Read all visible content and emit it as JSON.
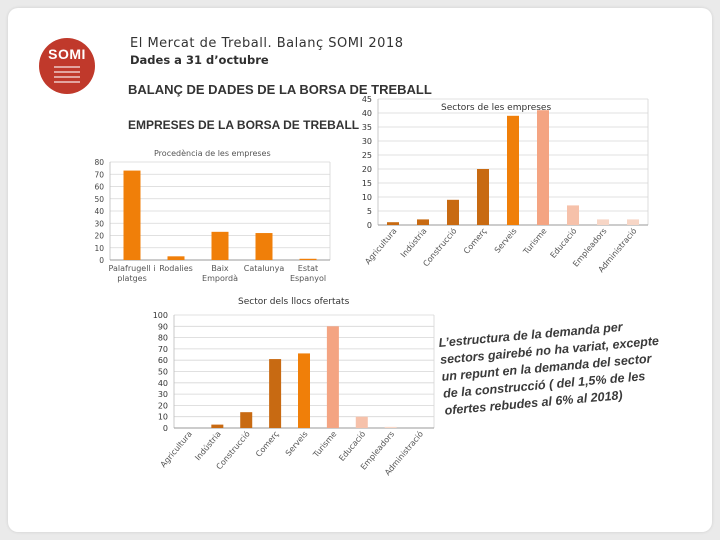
{
  "header": {
    "title": "El Mercat de Treball. Balanç SOMI 2018",
    "subtitle": "Dades a 31 d’octubre",
    "logo_text": "SOMI"
  },
  "headings": {
    "main": "BALANÇ DE DADES DE LA BORSA DE TREBALL",
    "companies": "EMPRESES DE LA BORSA DE TREBALL"
  },
  "note": {
    "lines": [
      "L’estructura de la demanda per",
      "sectors gairebé no ha variat, excepte",
      "un repunt en la demanda del sector",
      "de la construcció ( del 1,5% de les",
      "ofertes rebudes al 6% al 2018)"
    ]
  },
  "colors": {
    "orange": "#f07f09",
    "dark_orange": "#c86a12",
    "salmon": "#f4a482",
    "light_salmon": "#f6c1aa",
    "pale": "#f7d6c6",
    "accent_red": "#c0392b"
  },
  "chart_data": [
    {
      "id": "origin",
      "type": "bar",
      "title": "Procedència de les empreses",
      "categories": [
        "Palafrugell i platges",
        "Rodalies",
        "Baix Empordà",
        "Catalunya",
        "Estat Espanyol"
      ],
      "values": [
        73,
        3,
        23,
        22,
        1
      ],
      "ylim": [
        0,
        80
      ],
      "yticks": [
        0,
        10,
        20,
        30,
        40,
        50,
        60,
        70,
        80
      ],
      "grid": true,
      "legend": "none"
    },
    {
      "id": "companies_sector",
      "type": "bar",
      "title": "Sectors de les empreses",
      "categories": [
        "Agricultura",
        "Indústria",
        "Construcció",
        "Comerç",
        "Serveis",
        "Turisme",
        "Educació",
        "Empleadors",
        "Administració"
      ],
      "values": [
        1,
        2,
        9,
        20,
        39,
        41,
        7,
        2,
        2
      ],
      "ylim": [
        0,
        45
      ],
      "yticks": [
        0,
        5,
        10,
        15,
        20,
        25,
        30,
        35,
        40,
        45
      ],
      "grid": true,
      "legend": "none"
    },
    {
      "id": "offers_sector",
      "type": "bar",
      "title": "Sector dels llocs ofertats",
      "categories": [
        "Agricultura",
        "Indústria",
        "Construcció",
        "Comerç",
        "Serveis",
        "Turisme",
        "Educació",
        "Empleadors",
        "Administració"
      ],
      "values": [
        0,
        3,
        14,
        61,
        66,
        90,
        10,
        1,
        0
      ],
      "ylim": [
        0,
        100
      ],
      "yticks": [
        0,
        10,
        20,
        30,
        40,
        50,
        60,
        70,
        80,
        90,
        100
      ],
      "grid": true,
      "legend": "none"
    }
  ]
}
